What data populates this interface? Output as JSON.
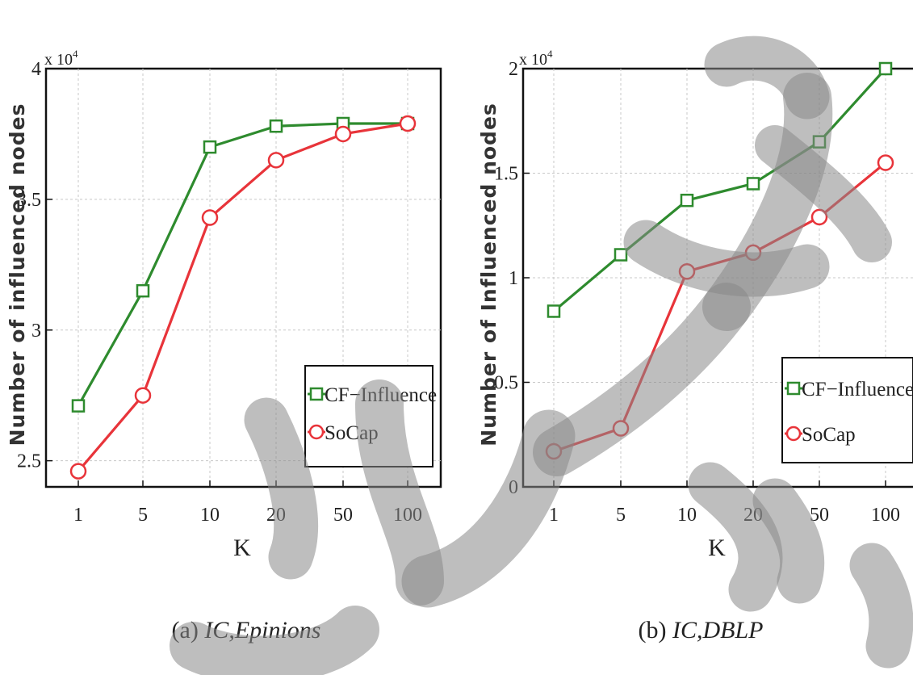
{
  "chart_data": [
    {
      "type": "line",
      "caption_prefix": "(a) ",
      "caption_italic": "IC,Epinions",
      "xlabel": "K",
      "ylabel": "Number of influenced nodes",
      "y_multiplier_base": "x 10",
      "y_multiplier_exp": "4",
      "categories": [
        "1",
        "5",
        "10",
        "20",
        "50",
        "100"
      ],
      "yticks": [
        {
          "value": 2.5,
          "label": "2.5"
        },
        {
          "value": 3.0,
          "label": "3"
        },
        {
          "value": 3.5,
          "label": "3.5"
        },
        {
          "value": 4.0,
          "label": "4"
        }
      ],
      "ylim": [
        2.4,
        4.0
      ],
      "grid": true,
      "legend_position": "lower-right",
      "series": [
        {
          "name": "CF−Influence",
          "color": "#2e8b2e",
          "marker": "square",
          "values": [
            2.71,
            3.15,
            3.7,
            3.78,
            3.79,
            3.79
          ]
        },
        {
          "name": "SoCap",
          "color": "#e8343a",
          "marker": "circle",
          "values": [
            2.46,
            2.75,
            3.43,
            3.65,
            3.75,
            3.79
          ]
        }
      ]
    },
    {
      "type": "line",
      "caption_prefix": "(b) ",
      "caption_italic": "IC,DBLP",
      "xlabel": "K",
      "ylabel": "Number of Influenced nodes",
      "y_multiplier_base": "x 10",
      "y_multiplier_exp": "4",
      "categories": [
        "1",
        "5",
        "10",
        "20",
        "50",
        "100"
      ],
      "yticks": [
        {
          "value": 0,
          "label": "0"
        },
        {
          "value": 0.5,
          "label": "0.5"
        },
        {
          "value": 1.0,
          "label": "1"
        },
        {
          "value": 1.5,
          "label": "1.5"
        },
        {
          "value": 2.0,
          "label": "2"
        }
      ],
      "ylim": [
        0,
        2.0
      ],
      "grid": true,
      "legend_position": "lower-right",
      "series": [
        {
          "name": "CF−Influence",
          "color": "#2e8b2e",
          "marker": "square",
          "values": [
            0.84,
            1.11,
            1.37,
            1.45,
            1.65,
            2.0
          ]
        },
        {
          "name": "SoCap",
          "color": "#e8343a",
          "marker": "circle",
          "values": [
            0.17,
            0.28,
            1.03,
            1.12,
            1.29,
            1.55
          ]
        }
      ]
    }
  ]
}
